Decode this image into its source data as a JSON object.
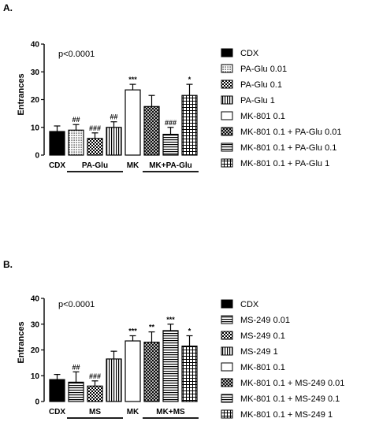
{
  "panels": [
    {
      "label": "A.",
      "pvalue": "p<0.0001",
      "chart_data": {
        "type": "bar",
        "ylabel": "Entrances",
        "ylim": [
          0,
          40
        ],
        "yticks": [
          0,
          10,
          20,
          30,
          40
        ],
        "categories": [
          "CDX",
          "PA-Glu 0.01",
          "PA-Glu 0.1",
          "PA-Glu 1",
          "MK-801 0.1",
          "MK-801 0.1 + PA-Glu 0.01",
          "MK-801 0.1 + PA-Glu 0.1",
          "MK-801 0.1 + PA-Glu 1"
        ],
        "values": [
          8.5,
          9.0,
          6.0,
          10.0,
          23.5,
          17.5,
          7.5,
          21.5
        ],
        "errors": [
          2.0,
          2.0,
          2.0,
          2.0,
          2.0,
          4.0,
          2.5,
          4.0
        ],
        "significance": [
          "",
          "##",
          "###",
          "##",
          "***",
          "",
          "###",
          "*"
        ],
        "patterns": [
          "solid",
          "dots",
          "checker",
          "vlines",
          "white",
          "crosshatch",
          "hlines",
          "grid"
        ],
        "group_labels": [
          {
            "label": "CDX",
            "bars": [
              0
            ],
            "underline": false
          },
          {
            "label": "PA-Glu",
            "bars": [
              1,
              2,
              3
            ],
            "underline": true
          },
          {
            "label": "MK",
            "bars": [
              4
            ],
            "underline": false
          },
          {
            "label": "MK+PA-Glu",
            "bars": [
              5,
              6,
              7
            ],
            "underline": true
          }
        ],
        "legend": [
          "CDX",
          "PA-Glu 0.01",
          "PA-Glu 0.1",
          "PA-Glu 1",
          "MK-801 0.1",
          "MK-801 0.1 + PA-Glu 0.01",
          "MK-801 0.1 + PA-Glu 0.1",
          "MK-801 0.1 + PA-Glu 1"
        ],
        "legend_position": "right"
      }
    },
    {
      "label": "B.",
      "pvalue": "p<0.0001",
      "chart_data": {
        "type": "bar",
        "ylabel": "Entrances",
        "ylim": [
          0,
          40
        ],
        "yticks": [
          0,
          10,
          20,
          30,
          40
        ],
        "categories": [
          "CDX",
          "MS-249 0.01",
          "MS-249 0.1",
          "MS-249 1",
          "MK-801 0.1",
          "MK-801 0.1 + MS-249 0.01",
          "MK-801 0.1 + MS-249 0.1",
          "MK-801 0.1 + MS-249 1"
        ],
        "values": [
          8.5,
          7.5,
          6.0,
          16.5,
          23.5,
          23.0,
          27.5,
          21.5
        ],
        "errors": [
          2.0,
          4.0,
          2.0,
          3.0,
          2.0,
          4.0,
          2.5,
          4.0
        ],
        "significance": [
          "",
          "##",
          "###",
          "",
          "***",
          "**",
          "***",
          "*"
        ],
        "patterns": [
          "solid",
          "hlines",
          "checker",
          "vlines",
          "white",
          "crosshatch",
          "hlines",
          "grid"
        ],
        "group_labels": [
          {
            "label": "CDX",
            "bars": [
              0
            ],
            "underline": false
          },
          {
            "label": "MS",
            "bars": [
              1,
              2,
              3
            ],
            "underline": true
          },
          {
            "label": "MK",
            "bars": [
              4
            ],
            "underline": false
          },
          {
            "label": "MK+MS",
            "bars": [
              5,
              6,
              7
            ],
            "underline": true
          }
        ],
        "legend": [
          "CDX",
          "MS-249 0.01",
          "MS-249 0.1",
          "MS-249 1",
          "MK-801 0.1",
          "MK-801 0.1 + MS-249 0.01",
          "MK-801 0.1 + MS-249 0.1",
          "MK-801 0.1 + MS-249 1"
        ],
        "legend_position": "right"
      }
    }
  ]
}
